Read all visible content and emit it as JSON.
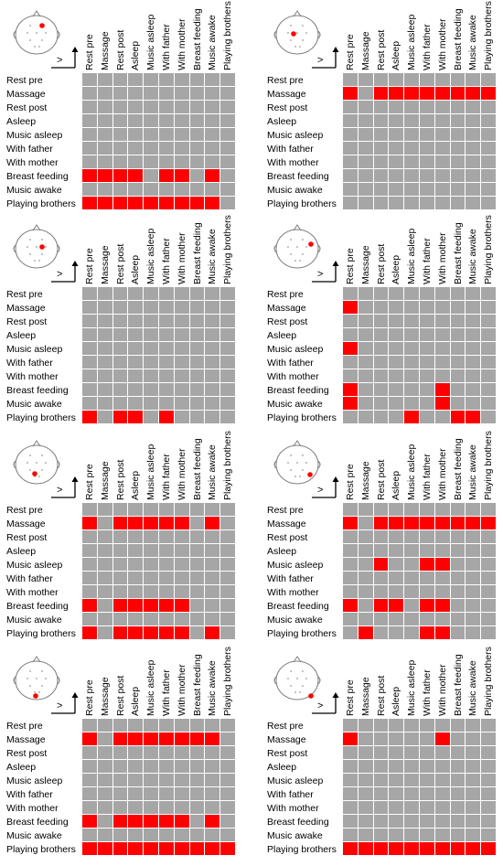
{
  "conditions": [
    "Rest pre",
    "Massage",
    "Rest post",
    "Asleep",
    "Music asleep",
    "With father",
    "With mother",
    "Breast feeding",
    "Music awake",
    "Playing brothers"
  ],
  "axis_symbol": ">",
  "colors": {
    "significant": "#ff0000",
    "non_significant": "#a6a6a6"
  },
  "chart_data": [
    {
      "type": "heatmap",
      "electrode": "frontal-midline",
      "rows": [
        "Rest pre",
        "Massage",
        "Rest post",
        "Asleep",
        "Music asleep",
        "With father",
        "With mother",
        "Breast feeding",
        "Music awake",
        "Playing brothers"
      ],
      "columns": [
        "Rest pre",
        "Massage",
        "Rest post",
        "Asleep",
        "Music asleep",
        "With father",
        "With mother",
        "Breast feeding",
        "Music awake",
        "Playing brothers"
      ],
      "values": [
        [
          0,
          0,
          0,
          0,
          0,
          0,
          0,
          0,
          0,
          0
        ],
        [
          0,
          0,
          0,
          0,
          0,
          0,
          0,
          0,
          0,
          0
        ],
        [
          0,
          0,
          0,
          0,
          0,
          0,
          0,
          0,
          0,
          0
        ],
        [
          0,
          0,
          0,
          0,
          0,
          0,
          0,
          0,
          0,
          0
        ],
        [
          0,
          0,
          0,
          0,
          0,
          0,
          0,
          0,
          0,
          0
        ],
        [
          0,
          0,
          0,
          0,
          0,
          0,
          0,
          0,
          0,
          0
        ],
        [
          0,
          0,
          0,
          0,
          0,
          0,
          0,
          0,
          0,
          0
        ],
        [
          1,
          1,
          1,
          1,
          0,
          1,
          1,
          0,
          1,
          0
        ],
        [
          0,
          0,
          0,
          0,
          0,
          0,
          0,
          0,
          0,
          0
        ],
        [
          1,
          1,
          1,
          1,
          1,
          1,
          1,
          1,
          1,
          0
        ]
      ]
    },
    {
      "type": "heatmap",
      "electrode": "frontal-left",
      "rows": [
        "Rest pre",
        "Massage",
        "Rest post",
        "Asleep",
        "Music asleep",
        "With father",
        "With mother",
        "Breast feeding",
        "Music awake",
        "Playing brothers"
      ],
      "columns": [
        "Rest pre",
        "Massage",
        "Rest post",
        "Asleep",
        "Music asleep",
        "With father",
        "With mother",
        "Breast feeding",
        "Music awake",
        "Playing brothers"
      ],
      "values": [
        [
          0,
          0,
          0,
          0,
          0,
          0,
          0,
          0,
          0,
          0
        ],
        [
          1,
          0,
          1,
          1,
          1,
          1,
          1,
          1,
          1,
          1
        ],
        [
          0,
          0,
          0,
          0,
          0,
          0,
          0,
          0,
          0,
          0
        ],
        [
          0,
          0,
          0,
          0,
          0,
          0,
          0,
          0,
          0,
          0
        ],
        [
          0,
          0,
          0,
          0,
          0,
          0,
          0,
          0,
          0,
          0
        ],
        [
          0,
          0,
          0,
          0,
          0,
          0,
          0,
          0,
          0,
          0
        ],
        [
          0,
          0,
          0,
          0,
          0,
          0,
          0,
          0,
          0,
          0
        ],
        [
          0,
          0,
          0,
          0,
          0,
          0,
          0,
          0,
          0,
          0
        ],
        [
          0,
          0,
          0,
          0,
          0,
          0,
          0,
          0,
          0,
          0
        ],
        [
          0,
          0,
          0,
          0,
          0,
          0,
          0,
          0,
          0,
          0
        ]
      ]
    },
    {
      "type": "heatmap",
      "electrode": "central-midline",
      "rows": [
        "Rest pre",
        "Massage",
        "Rest post",
        "Asleep",
        "Music asleep",
        "With father",
        "With mother",
        "Breast feeding",
        "Music awake",
        "Playing brothers"
      ],
      "columns": [
        "Rest pre",
        "Massage",
        "Rest post",
        "Asleep",
        "Music asleep",
        "With father",
        "With mother",
        "Breast feeding",
        "Music awake",
        "Playing brothers"
      ],
      "values": [
        [
          0,
          0,
          0,
          0,
          0,
          0,
          0,
          0,
          0,
          0
        ],
        [
          0,
          0,
          0,
          0,
          0,
          0,
          0,
          0,
          0,
          0
        ],
        [
          0,
          0,
          0,
          0,
          0,
          0,
          0,
          0,
          0,
          0
        ],
        [
          0,
          0,
          0,
          0,
          0,
          0,
          0,
          0,
          0,
          0
        ],
        [
          0,
          0,
          0,
          0,
          0,
          0,
          0,
          0,
          0,
          0
        ],
        [
          0,
          0,
          0,
          0,
          0,
          0,
          0,
          0,
          0,
          0
        ],
        [
          0,
          0,
          0,
          0,
          0,
          0,
          0,
          0,
          0,
          0
        ],
        [
          0,
          0,
          0,
          0,
          0,
          0,
          0,
          0,
          0,
          0
        ],
        [
          0,
          0,
          0,
          0,
          0,
          0,
          0,
          0,
          0,
          0
        ],
        [
          1,
          0,
          1,
          1,
          0,
          1,
          0,
          0,
          0,
          0
        ]
      ]
    },
    {
      "type": "heatmap",
      "electrode": "central-right",
      "rows": [
        "Rest pre",
        "Massage",
        "Rest post",
        "Asleep",
        "Music asleep",
        "With father",
        "With mother",
        "Breast feeding",
        "Music awake",
        "Playing brothers"
      ],
      "columns": [
        "Rest pre",
        "Massage",
        "Rest post",
        "Asleep",
        "Music asleep",
        "With father",
        "With mother",
        "Breast feeding",
        "Music awake",
        "Playing brothers"
      ],
      "values": [
        [
          0,
          0,
          0,
          0,
          0,
          0,
          0,
          0,
          0,
          0
        ],
        [
          1,
          0,
          0,
          0,
          0,
          0,
          0,
          0,
          0,
          0
        ],
        [
          0,
          0,
          0,
          0,
          0,
          0,
          0,
          0,
          0,
          0
        ],
        [
          0,
          0,
          0,
          0,
          0,
          0,
          0,
          0,
          0,
          0
        ],
        [
          1,
          0,
          0,
          0,
          0,
          0,
          0,
          0,
          0,
          0
        ],
        [
          0,
          0,
          0,
          0,
          0,
          0,
          0,
          0,
          0,
          0
        ],
        [
          0,
          0,
          0,
          0,
          0,
          0,
          0,
          0,
          0,
          0
        ],
        [
          1,
          0,
          0,
          0,
          0,
          0,
          1,
          0,
          0,
          0
        ],
        [
          1,
          0,
          0,
          0,
          0,
          0,
          1,
          0,
          0,
          0
        ],
        [
          0,
          0,
          0,
          0,
          1,
          0,
          0,
          1,
          1,
          0
        ]
      ]
    },
    {
      "type": "heatmap",
      "electrode": "parietal-left",
      "rows": [
        "Rest pre",
        "Massage",
        "Rest post",
        "Asleep",
        "Music asleep",
        "With father",
        "With mother",
        "Breast feeding",
        "Music awake",
        "Playing brothers"
      ],
      "columns": [
        "Rest pre",
        "Massage",
        "Rest post",
        "Asleep",
        "Music asleep",
        "With father",
        "With mother",
        "Breast feeding",
        "Music awake",
        "Playing brothers"
      ],
      "values": [
        [
          0,
          0,
          0,
          0,
          0,
          0,
          0,
          0,
          0,
          0
        ],
        [
          1,
          0,
          1,
          1,
          1,
          1,
          1,
          0,
          1,
          0
        ],
        [
          0,
          0,
          0,
          0,
          0,
          0,
          0,
          0,
          0,
          0
        ],
        [
          0,
          0,
          0,
          0,
          0,
          0,
          0,
          0,
          0,
          0
        ],
        [
          0,
          0,
          0,
          0,
          0,
          0,
          0,
          0,
          0,
          0
        ],
        [
          0,
          0,
          0,
          0,
          0,
          0,
          0,
          0,
          0,
          0
        ],
        [
          0,
          0,
          0,
          0,
          0,
          0,
          0,
          0,
          0,
          0
        ],
        [
          1,
          0,
          1,
          1,
          1,
          1,
          1,
          0,
          0,
          0
        ],
        [
          0,
          0,
          0,
          0,
          0,
          0,
          0,
          0,
          0,
          0
        ],
        [
          1,
          0,
          1,
          1,
          1,
          1,
          1,
          0,
          1,
          0
        ]
      ]
    },
    {
      "type": "heatmap",
      "electrode": "parietal-right",
      "rows": [
        "Rest pre",
        "Massage",
        "Rest post",
        "Asleep",
        "Music asleep",
        "With father",
        "With mother",
        "Breast feeding",
        "Music awake",
        "Playing brothers"
      ],
      "columns": [
        "Rest pre",
        "Massage",
        "Rest post",
        "Asleep",
        "Music asleep",
        "With father",
        "With mother",
        "Breast feeding",
        "Music awake",
        "Playing brothers"
      ],
      "values": [
        [
          0,
          0,
          0,
          0,
          0,
          0,
          0,
          0,
          0,
          0
        ],
        [
          1,
          0,
          1,
          1,
          1,
          1,
          1,
          1,
          1,
          1
        ],
        [
          0,
          0,
          0,
          0,
          0,
          0,
          0,
          0,
          0,
          0
        ],
        [
          0,
          0,
          0,
          0,
          0,
          0,
          0,
          0,
          0,
          0
        ],
        [
          0,
          0,
          1,
          0,
          0,
          1,
          1,
          0,
          0,
          0
        ],
        [
          0,
          0,
          0,
          0,
          0,
          0,
          0,
          0,
          0,
          0
        ],
        [
          0,
          0,
          0,
          0,
          0,
          0,
          0,
          0,
          0,
          0
        ],
        [
          1,
          0,
          1,
          1,
          0,
          1,
          1,
          0,
          0,
          0
        ],
        [
          0,
          0,
          0,
          0,
          0,
          0,
          0,
          0,
          0,
          0
        ],
        [
          0,
          1,
          0,
          0,
          0,
          1,
          1,
          0,
          0,
          0
        ]
      ]
    },
    {
      "type": "heatmap",
      "electrode": "occipital-midline",
      "rows": [
        "Rest pre",
        "Massage",
        "Rest post",
        "Asleep",
        "Music asleep",
        "With father",
        "With mother",
        "Breast feeding",
        "Music awake",
        "Playing brothers"
      ],
      "columns": [
        "Rest pre",
        "Massage",
        "Rest post",
        "Asleep",
        "Music asleep",
        "With father",
        "With mother",
        "Breast feeding",
        "Music awake",
        "Playing brothers"
      ],
      "values": [
        [
          0,
          0,
          0,
          0,
          0,
          0,
          0,
          0,
          0,
          0
        ],
        [
          1,
          0,
          1,
          1,
          1,
          1,
          1,
          1,
          1,
          0
        ],
        [
          0,
          0,
          0,
          0,
          0,
          0,
          0,
          0,
          0,
          0
        ],
        [
          0,
          0,
          0,
          0,
          0,
          0,
          0,
          0,
          0,
          0
        ],
        [
          0,
          0,
          0,
          0,
          0,
          0,
          0,
          0,
          0,
          0
        ],
        [
          0,
          0,
          0,
          0,
          0,
          0,
          0,
          0,
          0,
          0
        ],
        [
          0,
          0,
          0,
          0,
          0,
          0,
          0,
          0,
          0,
          0
        ],
        [
          1,
          0,
          1,
          1,
          1,
          1,
          1,
          0,
          1,
          0
        ],
        [
          0,
          0,
          0,
          0,
          0,
          0,
          0,
          0,
          0,
          0
        ],
        [
          1,
          1,
          1,
          1,
          1,
          1,
          1,
          1,
          1,
          1
        ]
      ]
    },
    {
      "type": "heatmap",
      "electrode": "occipital-right",
      "rows": [
        "Rest pre",
        "Massage",
        "Rest post",
        "Asleep",
        "Music asleep",
        "With father",
        "With mother",
        "Breast feeding",
        "Music awake",
        "Playing brothers"
      ],
      "columns": [
        "Rest pre",
        "Massage",
        "Rest post",
        "Asleep",
        "Music asleep",
        "With father",
        "With mother",
        "Breast feeding",
        "Music awake",
        "Playing brothers"
      ],
      "values": [
        [
          0,
          0,
          0,
          0,
          0,
          0,
          0,
          0,
          0,
          0
        ],
        [
          1,
          0,
          0,
          0,
          0,
          0,
          1,
          0,
          0,
          0
        ],
        [
          0,
          0,
          0,
          0,
          0,
          0,
          0,
          0,
          0,
          0
        ],
        [
          0,
          0,
          0,
          0,
          0,
          0,
          0,
          0,
          0,
          0
        ],
        [
          0,
          0,
          0,
          0,
          0,
          0,
          0,
          0,
          0,
          0
        ],
        [
          0,
          0,
          0,
          0,
          0,
          0,
          0,
          0,
          0,
          0
        ],
        [
          0,
          0,
          0,
          0,
          0,
          0,
          0,
          0,
          0,
          0
        ],
        [
          0,
          0,
          0,
          0,
          0,
          0,
          0,
          0,
          0,
          0
        ],
        [
          0,
          0,
          0,
          0,
          0,
          0,
          0,
          0,
          0,
          0
        ],
        [
          1,
          1,
          1,
          1,
          1,
          1,
          1,
          1,
          1,
          1
        ]
      ]
    }
  ]
}
